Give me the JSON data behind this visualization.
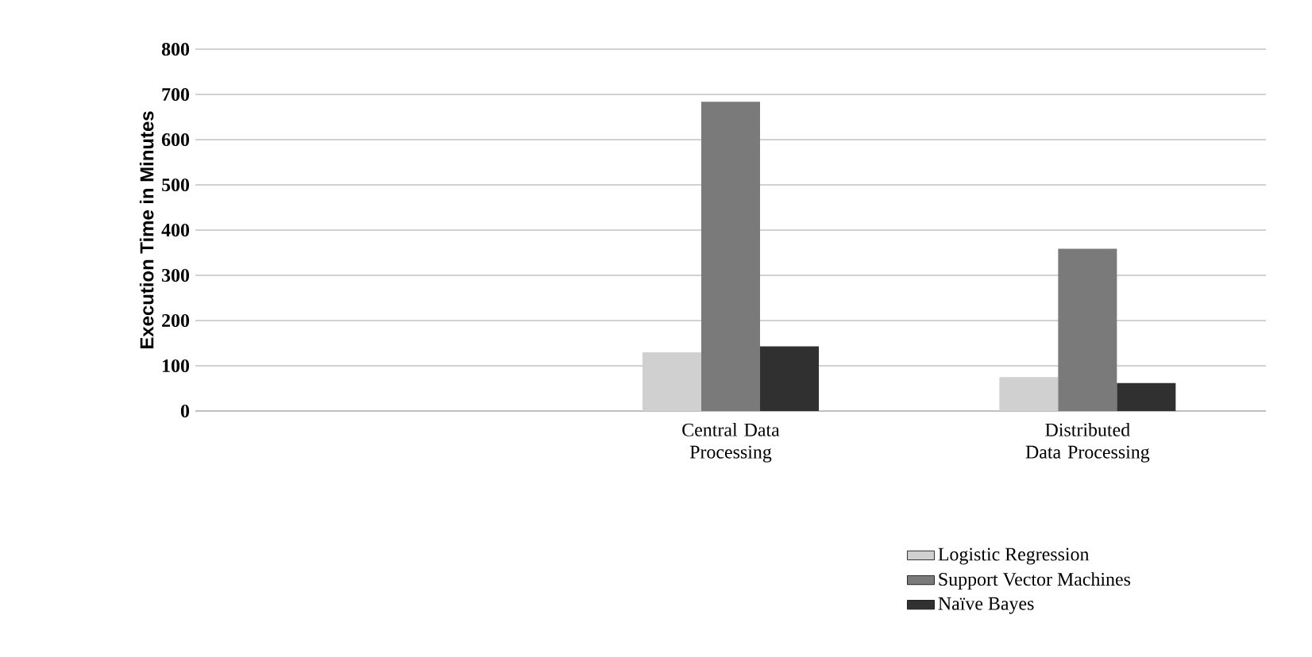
{
  "chart_data": {
    "type": "bar",
    "ylabel": "Execution Time in Minutes",
    "categories": [
      null,
      "Central Data Processing",
      "Distributed Data Processing"
    ],
    "series": [
      {
        "name": "Logistic Regression",
        "color": "#d0d0d0",
        "values": [
          null,
          130,
          75
        ]
      },
      {
        "name": "Support Vector Machines",
        "color": "#7a7a7a",
        "values": [
          null,
          684,
          359
        ]
      },
      {
        "name": "Naïve Bayes",
        "color": "#303030",
        "values": [
          null,
          143,
          62
        ]
      }
    ],
    "ylim": [
      0,
      800
    ],
    "yticks": [
      0,
      100,
      200,
      300,
      400,
      500,
      600,
      700,
      800
    ],
    "grid": "y",
    "legend": "bottom right"
  }
}
